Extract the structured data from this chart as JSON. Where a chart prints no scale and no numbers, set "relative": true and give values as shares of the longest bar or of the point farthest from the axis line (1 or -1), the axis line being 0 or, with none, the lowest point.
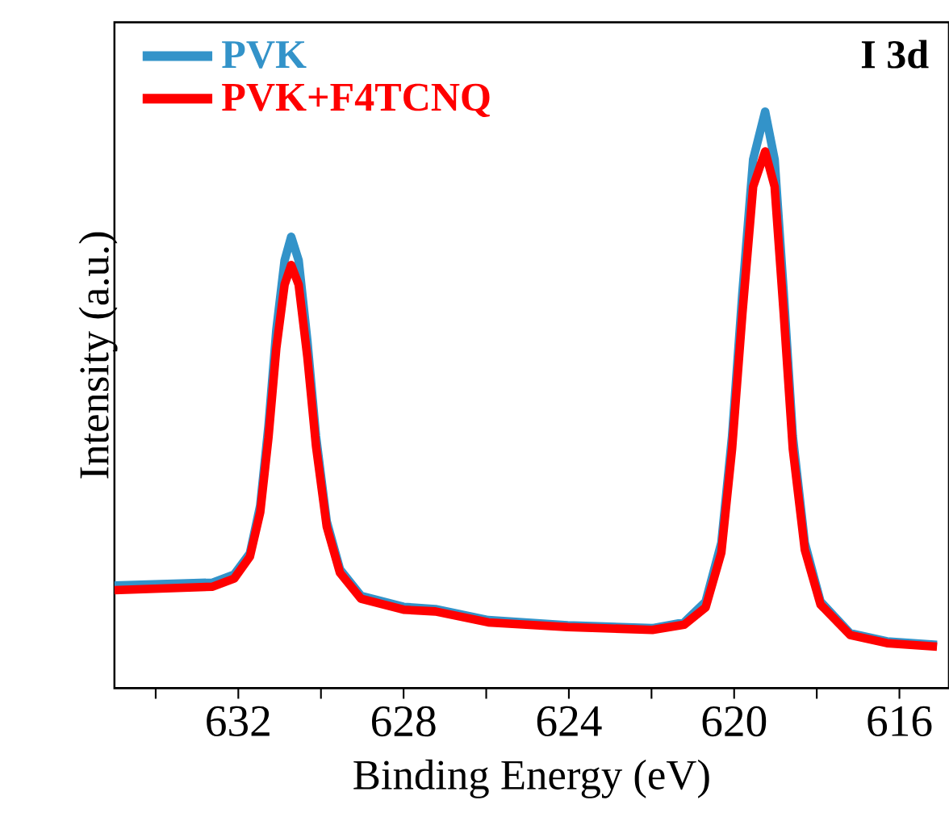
{
  "chart_data": {
    "type": "line",
    "xlabel": "Binding Energy (eV)",
    "ylabel": "Intensity (a.u.)",
    "annotations": [
      "I 3d"
    ],
    "relative": true,
    "legend": "top left",
    "tick_labels": "x",
    "xlim": [
      635,
      614.8
    ],
    "xticks": [
      {
        "value": 634,
        "label": null
      },
      632,
      {
        "value": 630,
        "label": null
      },
      628,
      {
        "value": 626,
        "label": null
      },
      624,
      {
        "value": 622,
        "label": null
      },
      620,
      {
        "value": 618,
        "label": null
      },
      616
    ],
    "series": [
      {
        "name": "PVK",
        "color": "#3393c9",
        "x": [
          635.0,
          632.62,
          632.1,
          631.72,
          631.47,
          631.27,
          631.08,
          630.88,
          630.72,
          630.54,
          630.33,
          630.12,
          629.86,
          629.54,
          629.03,
          628.0,
          627.23,
          625.95,
          624.03,
          621.98,
          621.21,
          620.69,
          620.31,
          620.05,
          619.8,
          619.54,
          619.25,
          619.02,
          618.8,
          618.58,
          618.29,
          617.91,
          617.19,
          616.3,
          615.09
        ],
        "values": [
          0.178,
          0.183,
          0.197,
          0.234,
          0.317,
          0.455,
          0.621,
          0.742,
          0.783,
          0.742,
          0.603,
          0.437,
          0.289,
          0.206,
          0.16,
          0.141,
          0.137,
          0.118,
          0.109,
          0.104,
          0.114,
          0.15,
          0.252,
          0.437,
          0.686,
          0.917,
          1.0,
          0.917,
          0.686,
          0.437,
          0.252,
          0.15,
          0.095,
          0.081,
          0.075
        ]
      },
      {
        "name": "PVK+F4TCNQ",
        "color": "#ff0000",
        "x": [
          635.0,
          632.62,
          632.1,
          631.72,
          631.47,
          631.27,
          631.08,
          630.88,
          630.72,
          630.54,
          630.33,
          630.12,
          629.86,
          629.54,
          629.03,
          628.0,
          627.23,
          625.95,
          624.03,
          621.98,
          621.21,
          620.69,
          620.31,
          620.05,
          619.8,
          619.54,
          619.25,
          619.02,
          618.8,
          618.58,
          618.29,
          617.91,
          617.19,
          616.3,
          615.09
        ],
        "values": [
          0.17,
          0.176,
          0.19,
          0.228,
          0.305,
          0.435,
          0.59,
          0.7,
          0.734,
          0.7,
          0.575,
          0.42,
          0.28,
          0.2,
          0.155,
          0.136,
          0.133,
          0.114,
          0.106,
          0.101,
          0.11,
          0.14,
          0.235,
          0.415,
          0.65,
          0.87,
          0.931,
          0.87,
          0.65,
          0.415,
          0.24,
          0.145,
          0.092,
          0.078,
          0.072
        ]
      }
    ]
  }
}
